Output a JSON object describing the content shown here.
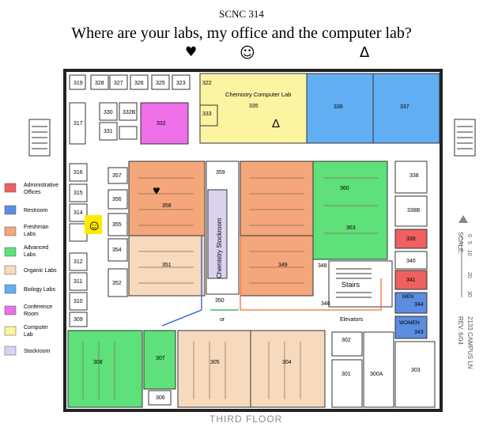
{
  "header": {
    "course": "SCNC 314",
    "question": "Where are your labs, my office and the computer lab?",
    "symbol_heart": "♥",
    "symbol_smiley": "☺",
    "symbol_delta": "Δ"
  },
  "legend": [
    {
      "label": "Administrative",
      "label2": "Offices",
      "color": "#ef6060"
    },
    {
      "label": "Restroom",
      "label2": "",
      "color": "#5b8de0"
    },
    {
      "label": "Freshman",
      "label2": "Labs",
      "color": "#f4a77a"
    },
    {
      "label": "Advanced",
      "label2": "Labs",
      "color": "#5ee07a"
    },
    {
      "label": "Organic Labs",
      "label2": "",
      "color": "#f7d9bd"
    },
    {
      "label": "Biology Labs",
      "label2": "",
      "color": "#62aef2"
    },
    {
      "label": "Conference",
      "label2": "Room",
      "color": "#ee6fe8"
    },
    {
      "label": "Computer",
      "label2": "Lab",
      "color": "#fbf4a0"
    },
    {
      "label": "Stockroom",
      "label2": "",
      "color": "#dcd2f0"
    }
  ],
  "map": {
    "computer_lab_label": "Chemistry Computer Lab",
    "stockroom_label": "Chemistry Stockroom",
    "stairs_label": "Stairs",
    "elevators_label": "Elevators",
    "or_label": "or",
    "men_label": "MEN",
    "women_label": "WOMEN",
    "floor_label": "THIRD FLOOR",
    "scale_label": "SCALE:",
    "scale_ticks": [
      "0",
      "5",
      "10",
      "20",
      "30"
    ],
    "revision_label": "REV. 6/04",
    "address_label": "2133 CAMPUS LN",
    "rooms": {
      "r319": "319",
      "r318": "318",
      "r317": "317",
      "r316": "316",
      "r315": "315",
      "r314": "314",
      "r313": "313",
      "r312": "312",
      "r311": "311",
      "r310": "310",
      "r309": "309",
      "r308": "308",
      "r307": "307",
      "r306": "306",
      "r305": "305",
      "r304": "304",
      "r303": "303",
      "r302": "302",
      "r301": "301",
      "r300a": "300A",
      "r326": "326",
      "r327": "327",
      "r328": "328",
      "r329": "329",
      "r330": "330",
      "r331": "331",
      "r332": "332",
      "r333": "333",
      "r334": "334",
      "r335": "335",
      "r336": "336",
      "r337": "337",
      "r338": "338",
      "r339": "339",
      "r340": "340",
      "r341": "341",
      "r342": "342",
      "r343": "343",
      "r344": "344",
      "r346": "346",
      "r348": "348",
      "r349": "349",
      "r350": "350",
      "r351": "351",
      "r352": "352",
      "r353": "353",
      "r354": "354",
      "r355": "355",
      "r356": "356",
      "r357": "357",
      "r358": "358",
      "r359": "359",
      "r360": "360",
      "r361": "361",
      "r362": "362",
      "r363": "363",
      "r325": "325",
      "r323": "323",
      "r322": "322",
      "r321": "321",
      "r320": "320",
      "r338b": "338B",
      "r332b": "332B"
    }
  },
  "colors": {
    "admin": "#ef6060",
    "restroom": "#5b8de0",
    "freshman": "#f4a77a",
    "advanced": "#5ee07a",
    "organic": "#f7d9bd",
    "biology": "#62aef2",
    "conference": "#ee6fe8",
    "computer": "#fbf4a0",
    "stockroom": "#dcd2f0",
    "smiley_bg": "#ffea00",
    "arrow_blue": "#2a5bd6",
    "arrow_orange": "#f07030",
    "arrow_green": "#27a34a"
  }
}
